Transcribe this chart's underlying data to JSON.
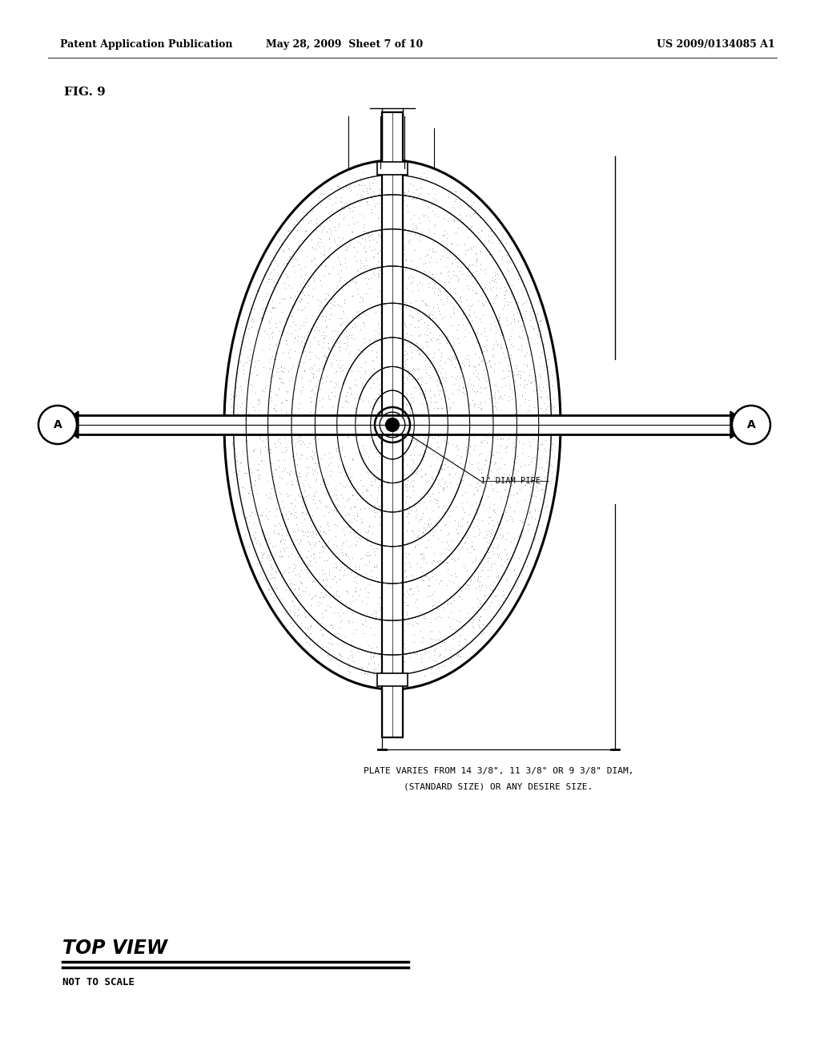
{
  "header_left": "Patent Application Publication",
  "header_mid": "May 28, 2009  Sheet 7 of 10",
  "header_right": "US 2009/0134085 A1",
  "fig_label": "FIG. 9",
  "pipe_label": "1\" DIAM PIPE",
  "bottom_label1": "PLATE VARIES FROM 14 3/8\", 11 3/8\" OR 9 3/8\" DIAM,",
  "bottom_label2": "(STANDARD SIZE) OR ANY DESIRE SIZE.",
  "top_view_label": "TOP VIEW",
  "not_to_scale": "NOT TO SCALE",
  "bg_color": "#ffffff",
  "fg_color": "#000000"
}
